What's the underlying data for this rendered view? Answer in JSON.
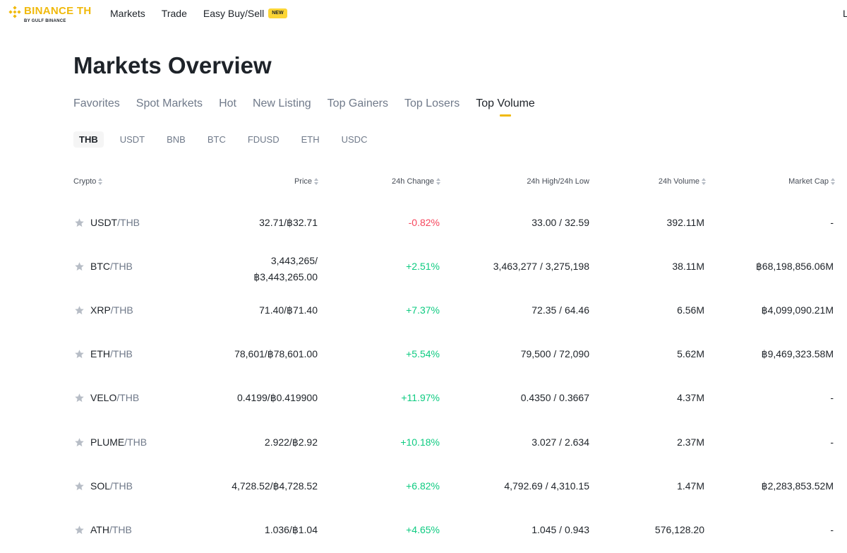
{
  "header": {
    "brand": "BINANCE TH",
    "brand_sub": "BY GULF BINANCE",
    "nav": [
      "Markets",
      "Trade",
      "Easy Buy/Sell"
    ],
    "new_badge": "NEW",
    "edge_text": "L"
  },
  "page_title": "Markets Overview",
  "tabs": [
    "Favorites",
    "Spot Markets",
    "Hot",
    "New Listing",
    "Top Gainers",
    "Top Losers",
    "Top Volume"
  ],
  "active_tab": "Top Volume",
  "quotes": [
    "THB",
    "USDT",
    "BNB",
    "BTC",
    "FDUSD",
    "ETH",
    "USDC"
  ],
  "active_quote": "THB",
  "columns": {
    "crypto": "Crypto",
    "price": "Price",
    "change": "24h Change",
    "high_low": "24h High/24h Low",
    "volume": "24h Volume",
    "market_cap": "Market Cap"
  },
  "rows": [
    {
      "base": "USDT",
      "quote": "/THB",
      "price": "32.71/฿32.71",
      "change": "-0.82%",
      "trend": "neg",
      "high_low": "33.00 / 32.59",
      "volume": "392.11M",
      "market_cap": "-"
    },
    {
      "base": "BTC",
      "quote": "/THB",
      "price": "3,443,265/",
      "price_line2": "฿3,443,265.00",
      "change": "+2.51%",
      "trend": "pos",
      "high_low": "3,463,277 / 3,275,198",
      "volume": "38.11M",
      "market_cap": "฿68,198,856.06M"
    },
    {
      "base": "XRP",
      "quote": "/THB",
      "price": "71.40/฿71.40",
      "change": "+7.37%",
      "trend": "pos",
      "high_low": "72.35 / 64.46",
      "volume": "6.56M",
      "market_cap": "฿4,099,090.21M"
    },
    {
      "base": "ETH",
      "quote": "/THB",
      "price": "78,601/฿78,601.00",
      "change": "+5.54%",
      "trend": "pos",
      "high_low": "79,500 / 72,090",
      "volume": "5.62M",
      "market_cap": "฿9,469,323.58M"
    },
    {
      "base": "VELO",
      "quote": "/THB",
      "price": "0.4199/฿0.419900",
      "change": "+11.97%",
      "trend": "pos",
      "high_low": "0.4350 / 0.3667",
      "volume": "4.37M",
      "market_cap": "-"
    },
    {
      "base": "PLUME",
      "quote": "/THB",
      "price": "2.922/฿2.92",
      "change": "+10.18%",
      "trend": "pos",
      "high_low": "3.027 / 2.634",
      "volume": "2.37M",
      "market_cap": "-"
    },
    {
      "base": "SOL",
      "quote": "/THB",
      "price": "4,728.52/฿4,728.52",
      "change": "+6.82%",
      "trend": "pos",
      "high_low": "4,792.69 / 4,310.15",
      "volume": "1.47M",
      "market_cap": "฿2,283,853.52M"
    },
    {
      "base": "ATH",
      "quote": "/THB",
      "price": "1.036/฿1.04",
      "change": "+4.65%",
      "trend": "pos",
      "high_low": "1.045 / 0.943",
      "volume": "576,128.20",
      "market_cap": "-"
    }
  ],
  "colors": {
    "brand": "#f0b90b",
    "positive": "#0ecb81",
    "negative": "#f6465d",
    "muted": "#707a8a",
    "star": "#b7bdc6"
  },
  "icons": {
    "logo": "binance-diamond-icon",
    "favorite": "star-icon",
    "sort": "sort-icon"
  }
}
